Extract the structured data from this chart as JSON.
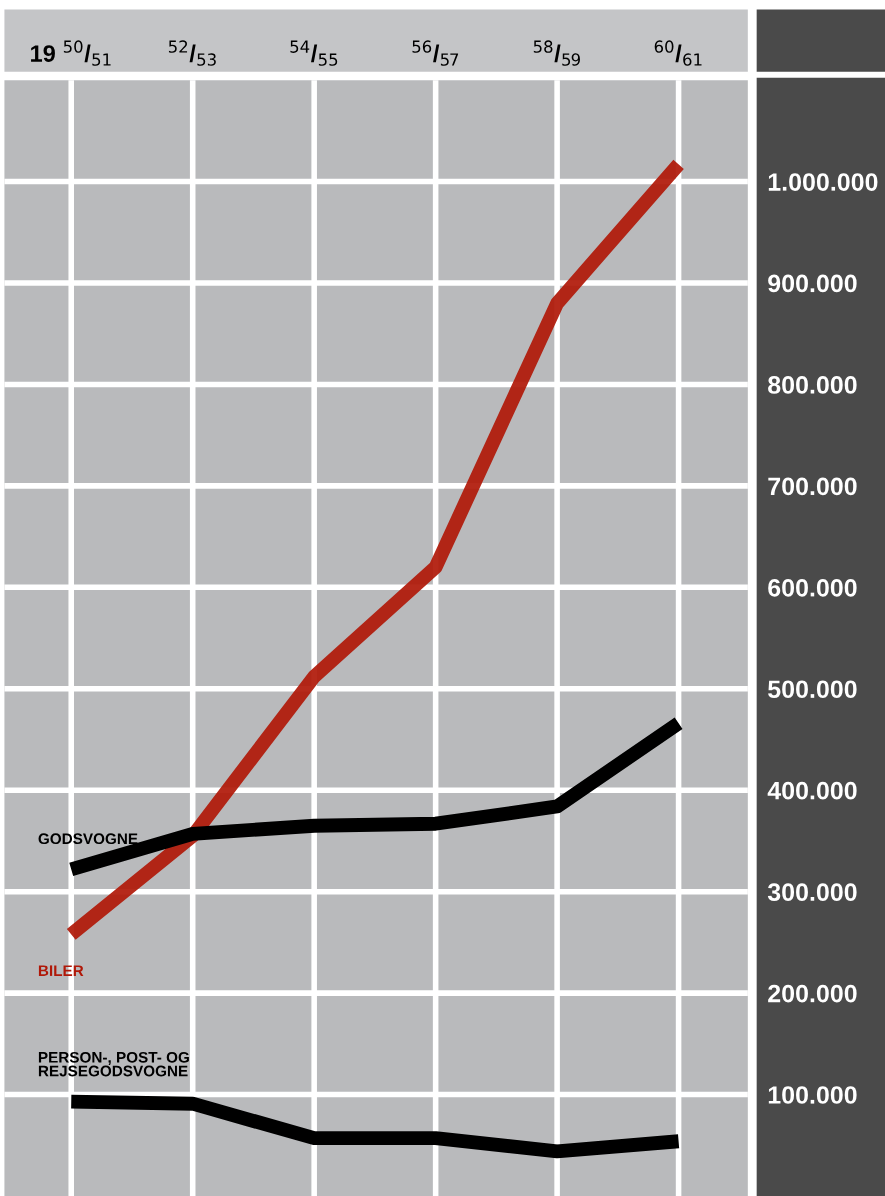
{
  "chart_data": {
    "type": "line",
    "categories": [
      "19 $^{50}$/$_{51}$",
      "$^{52}$/$_{53}$",
      "$^{54}$/$_{55}$",
      "$^{56}$/$_{57}$",
      "$^{58}$/$_{59}$",
      "$^{60}$/$_{61}$"
    ],
    "series": [
      {
        "name": "BILER",
        "color": "#b01808",
        "values": [
          258000,
          355000,
          512000,
          620000,
          880000,
          1017000
        ]
      },
      {
        "name": "GODSVOGNE",
        "color": "#000000",
        "values": [
          322000,
          357000,
          365000,
          367000,
          384000,
          466000
        ]
      },
      {
        "name": "PERSON-, POST- OG\nREJSEGODSVOGNE",
        "color": "#000000",
        "values": [
          93000,
          91000,
          57000,
          57000,
          44000,
          54000
        ]
      }
    ],
    "ylim": [
      0,
      1100000
    ],
    "yticks": [
      {
        "value": 100000,
        "label": "100.000"
      },
      {
        "value": 200000,
        "label": "200.000"
      },
      {
        "value": 300000,
        "label": "300.000"
      },
      {
        "value": 400000,
        "label": "400.000"
      },
      {
        "value": 500000,
        "label": "500.000"
      },
      {
        "value": 600000,
        "label": "600.000"
      },
      {
        "value": 700000,
        "label": "700.000"
      },
      {
        "value": 800000,
        "label": "800.000"
      },
      {
        "value": 900000,
        "label": "900.000"
      },
      {
        "value": 1000000,
        "label": "1.000.000"
      }
    ],
    "grid": true,
    "legend": false,
    "marker": "none",
    "line_style": "solid"
  }
}
